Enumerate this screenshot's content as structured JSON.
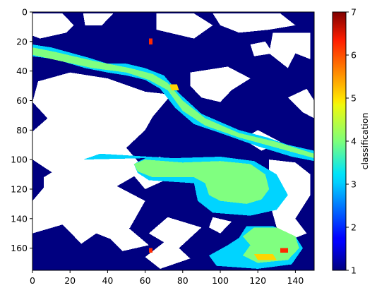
{
  "chart_data": {
    "type": "heatmap",
    "title": "",
    "xlabel": "",
    "ylabel": "",
    "xlim": [
      0,
      150
    ],
    "ylim": [
      175,
      0
    ],
    "x_ticks": [
      0,
      20,
      40,
      60,
      80,
      100,
      120,
      140
    ],
    "y_ticks": [
      0,
      20,
      40,
      60,
      80,
      100,
      120,
      140,
      160
    ],
    "colorbar": {
      "label": "classification",
      "min": 1,
      "max": 7,
      "ticks": [
        1,
        2,
        3,
        4,
        5,
        6,
        7
      ],
      "colormap": "jet"
    },
    "class_values": {
      "background": 1,
      "boundary": 3,
      "channel": 4,
      "accent": 5,
      "high": 6
    },
    "nodata_color": "#ffffff",
    "regions": {
      "nodata": [
        [
          [
            0,
            1
          ],
          [
            16,
            1
          ],
          [
            22,
            9
          ],
          [
            18,
            14
          ],
          [
            4,
            18
          ],
          [
            0,
            16
          ]
        ],
        [
          [
            27,
            1
          ],
          [
            43,
            1
          ],
          [
            37,
            9
          ],
          [
            28,
            9
          ]
        ],
        [
          [
            3,
            47
          ],
          [
            20,
            41
          ],
          [
            40,
            45
          ],
          [
            60,
            54
          ],
          [
            74,
            56
          ],
          [
            64,
            71
          ],
          [
            60,
            80
          ],
          [
            50,
            92
          ],
          [
            60,
            107
          ],
          [
            45,
            118
          ],
          [
            60,
            128
          ],
          [
            52,
            146
          ],
          [
            44,
            155
          ],
          [
            34,
            150
          ],
          [
            26,
            157
          ],
          [
            16,
            144
          ],
          [
            0,
            150
          ],
          [
            0,
            128
          ],
          [
            12,
            110
          ],
          [
            0,
            100
          ],
          [
            0,
            81
          ],
          [
            8,
            72
          ],
          [
            0,
            61
          ]
        ],
        [
          [
            6,
            112
          ],
          [
            15,
            105
          ],
          [
            22,
            112
          ],
          [
            14,
            122
          ],
          [
            6,
            120
          ]
        ],
        [
          [
            50,
            105
          ],
          [
            68,
            98
          ],
          [
            74,
            112
          ],
          [
            60,
            120
          ]
        ],
        [
          [
            40,
            152
          ],
          [
            50,
            145
          ],
          [
            62,
            158
          ],
          [
            48,
            162
          ]
        ],
        [
          [
            66,
            1
          ],
          [
            86,
            1
          ],
          [
            96,
            9
          ],
          [
            86,
            18
          ],
          [
            66,
            12
          ]
        ],
        [
          [
            96,
            1
          ],
          [
            132,
            1
          ],
          [
            140,
            9
          ],
          [
            126,
            12
          ],
          [
            110,
            14
          ],
          [
            100,
            9
          ]
        ],
        [
          [
            128,
            14
          ],
          [
            148,
            14
          ],
          [
            148,
            32
          ],
          [
            140,
            28
          ],
          [
            136,
            38
          ],
          [
            126,
            28
          ]
        ],
        [
          [
            84,
            41
          ],
          [
            104,
            37
          ],
          [
            116,
            45
          ],
          [
            106,
            53
          ],
          [
            100,
            61
          ],
          [
            90,
            58
          ],
          [
            84,
            50
          ]
        ],
        [
          [
            116,
            22
          ],
          [
            124,
            20
          ],
          [
            128,
            28
          ],
          [
            118,
            30
          ]
        ],
        [
          [
            112,
            86
          ],
          [
            120,
            80
          ],
          [
            132,
            88
          ],
          [
            122,
            94
          ]
        ],
        [
          [
            126,
            100
          ],
          [
            140,
            102
          ],
          [
            148,
            110
          ],
          [
            148,
            124
          ],
          [
            140,
            140
          ],
          [
            146,
            150
          ],
          [
            138,
            154
          ],
          [
            130,
            146
          ],
          [
            126,
            128
          ],
          [
            132,
            118
          ],
          [
            126,
            108
          ]
        ],
        [
          [
            72,
            139
          ],
          [
            90,
            146
          ],
          [
            78,
            160
          ],
          [
            84,
            167
          ],
          [
            68,
            174
          ],
          [
            60,
            166
          ],
          [
            70,
            156
          ],
          [
            62,
            150
          ]
        ],
        [
          [
            96,
            139
          ],
          [
            106,
            142
          ],
          [
            100,
            150
          ],
          [
            94,
            146
          ]
        ],
        [
          [
            136,
            58
          ],
          [
            146,
            52
          ],
          [
            150,
            60
          ],
          [
            150,
            72
          ],
          [
            144,
            68
          ]
        ]
      ],
      "boundary": [
        [
          [
            27,
            100
          ],
          [
            36,
            96
          ],
          [
            75,
            99
          ],
          [
            100,
            98
          ],
          [
            118,
            101
          ],
          [
            130,
            110
          ],
          [
            136,
            124
          ],
          [
            130,
            134
          ],
          [
            116,
            138
          ],
          [
            96,
            136
          ],
          [
            88,
            128
          ],
          [
            86,
            116
          ],
          [
            62,
            114
          ],
          [
            56,
            109
          ],
          [
            54,
            103
          ],
          [
            60,
            99
          ]
        ],
        [
          [
            110,
            153
          ],
          [
            114,
            145
          ],
          [
            128,
            145
          ],
          [
            140,
            152
          ],
          [
            144,
            160
          ],
          [
            138,
            171
          ],
          [
            120,
            174
          ],
          [
            98,
            172
          ],
          [
            94,
            165
          ],
          [
            104,
            158
          ]
        ],
        [
          [
            0,
            22
          ],
          [
            10,
            24
          ],
          [
            30,
            31
          ],
          [
            40,
            35
          ],
          [
            50,
            35
          ],
          [
            60,
            38
          ],
          [
            70,
            43
          ],
          [
            78,
            55
          ],
          [
            90,
            69
          ],
          [
            110,
            80
          ],
          [
            125,
            85
          ],
          [
            136,
            90
          ],
          [
            150,
            94
          ],
          [
            150,
            101
          ],
          [
            138,
            98
          ],
          [
            120,
            91
          ],
          [
            100,
            82
          ],
          [
            86,
            76
          ],
          [
            76,
            65
          ],
          [
            68,
            52
          ],
          [
            60,
            46
          ],
          [
            50,
            43
          ],
          [
            40,
            41
          ],
          [
            28,
            38
          ],
          [
            12,
            32
          ],
          [
            0,
            30
          ]
        ]
      ],
      "channel": [
        [
          [
            0,
            24
          ],
          [
            12,
            27
          ],
          [
            32,
            33
          ],
          [
            52,
            38
          ],
          [
            64,
            42
          ],
          [
            72,
            48
          ],
          [
            80,
            60
          ],
          [
            92,
            72
          ],
          [
            110,
            82
          ],
          [
            130,
            88
          ],
          [
            150,
            96
          ],
          [
            150,
            99
          ],
          [
            130,
            92
          ],
          [
            110,
            85
          ],
          [
            92,
            77
          ],
          [
            80,
            67
          ],
          [
            72,
            53
          ],
          [
            62,
            46
          ],
          [
            50,
            41
          ],
          [
            32,
            38
          ],
          [
            14,
            33
          ],
          [
            0,
            29
          ]
        ],
        [
          [
            54,
            103
          ],
          [
            60,
            100
          ],
          [
            80,
            102
          ],
          [
            100,
            101
          ],
          [
            116,
            103
          ],
          [
            124,
            110
          ],
          [
            126,
            120
          ],
          [
            122,
            127
          ],
          [
            114,
            130
          ],
          [
            100,
            128
          ],
          [
            94,
            124
          ],
          [
            92,
            116
          ],
          [
            86,
            112
          ],
          [
            64,
            112
          ],
          [
            56,
            108
          ]
        ],
        [
          [
            118,
            146
          ],
          [
            130,
            146
          ],
          [
            140,
            152
          ],
          [
            142,
            160
          ],
          [
            136,
            168
          ],
          [
            120,
            170
          ],
          [
            112,
            165
          ],
          [
            116,
            158
          ],
          [
            112,
            152
          ]
        ]
      ],
      "accent": [
        [
          [
            118,
            164
          ],
          [
            128,
            164
          ],
          [
            130,
            168
          ],
          [
            120,
            168
          ]
        ],
        [
          [
            73,
            49
          ],
          [
            77,
            49
          ],
          [
            78,
            53
          ],
          [
            74,
            53
          ]
        ]
      ],
      "high": [
        [
          [
            62,
            18
          ],
          [
            64,
            18
          ],
          [
            64,
            22
          ],
          [
            62,
            22
          ]
        ],
        [
          [
            62,
            160
          ],
          [
            64,
            160
          ],
          [
            64,
            163
          ],
          [
            62,
            163
          ]
        ],
        [
          [
            132,
            160
          ],
          [
            136,
            160
          ],
          [
            136,
            163
          ],
          [
            132,
            163
          ]
        ]
      ]
    }
  }
}
